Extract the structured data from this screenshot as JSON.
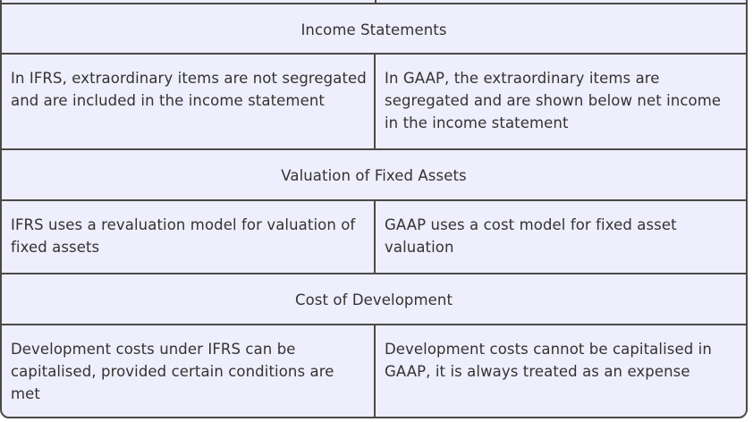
{
  "sections": [
    {
      "title": "Income Statements",
      "ifrs": "In IFRS, extraordinary items are not segregated and are included in the income statement",
      "gaap": "In GAAP, the extraordinary items are segregated and are shown below net income in the income statement"
    },
    {
      "title": "Valuation of Fixed Assets",
      "ifrs": "IFRS uses a revaluation model for valuation of fixed assets",
      "gaap": "GAAP uses a cost model for fixed asset valuation"
    },
    {
      "title": "Cost of Development",
      "ifrs": "Development costs under IFRS can be capitalised, provided certain conditions are met",
      "gaap": "Development costs cannot be capitalised in GAAP, it is always treated as an expense"
    }
  ]
}
